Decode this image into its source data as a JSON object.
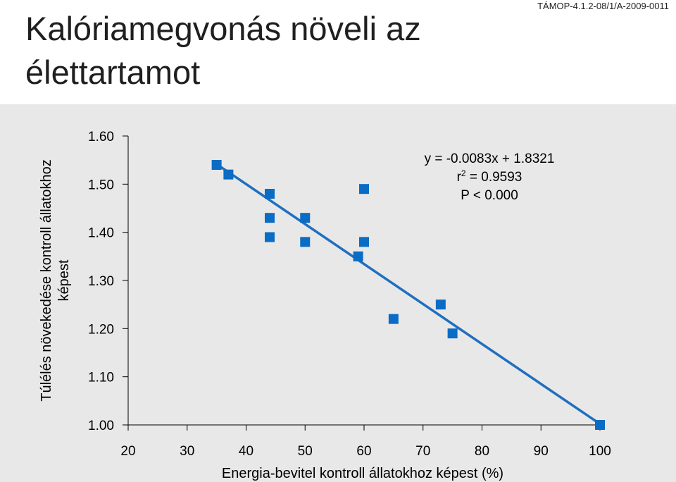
{
  "page": {
    "title_line1": "Kalóriamegvonás növeli az",
    "title_line2": "élettartamot",
    "code": "TÁMOP-4.1.2-08/1/A-2009-0011"
  },
  "colors": {
    "marker": "#0a6cc4",
    "line": "#1f6fc0",
    "panel": "#e8e8e8"
  },
  "chart_data": {
    "type": "scatter",
    "xlabel": "Energia-bevitel kontroll állatokhoz képest (%)",
    "ylabel_line1": "Túlélés növekedése kontroll állatokhoz",
    "ylabel_line2": "képest",
    "xlim": [
      20,
      100
    ],
    "ylim": [
      1.0,
      1.6
    ],
    "xticks": [
      "20",
      "30",
      "40",
      "50",
      "60",
      "70",
      "80",
      "90",
      "100"
    ],
    "yticks": [
      "1.60",
      "1.50",
      "1.40",
      "1.30",
      "1.20",
      "1.10",
      "1.00"
    ],
    "points": [
      {
        "x": 35,
        "y": 1.54
      },
      {
        "x": 37,
        "y": 1.52
      },
      {
        "x": 44,
        "y": 1.48
      },
      {
        "x": 44,
        "y": 1.43
      },
      {
        "x": 44,
        "y": 1.39
      },
      {
        "x": 50,
        "y": 1.43
      },
      {
        "x": 50,
        "y": 1.38
      },
      {
        "x": 60,
        "y": 1.49
      },
      {
        "x": 60,
        "y": 1.38
      },
      {
        "x": 59,
        "y": 1.35
      },
      {
        "x": 65,
        "y": 1.22
      },
      {
        "x": 73,
        "y": 1.25
      },
      {
        "x": 75,
        "y": 1.19
      },
      {
        "x": 100,
        "y": 1.0
      }
    ],
    "fit_line": {
      "x_start": 35,
      "x_end": 100
    },
    "annotation": {
      "equation": "y = -0.0083x + 1.8321",
      "r2_prefix": "r",
      "r2_sup": "2",
      "r2_suffix": " = 0.9593",
      "p_value": "P < 0.000"
    },
    "grid": false,
    "legend": "none"
  }
}
